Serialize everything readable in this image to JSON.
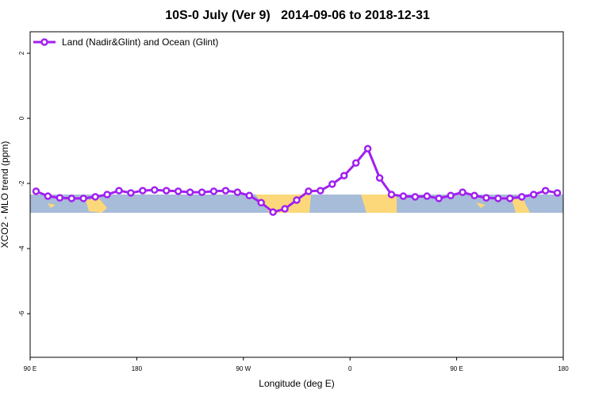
{
  "chart_data": {
    "type": "line",
    "title": "10S-0 July (Ver 9)   2014-09-06 to 2018-12-31",
    "xlabel": "Longitude (deg E)",
    "ylabel": "XCO2 - MLO trend (ppm)",
    "xlim": [
      90,
      540
    ],
    "ylim": [
      -7.34,
      2.66
    ],
    "xticks": [
      {
        "value": 90,
        "label": "90 E"
      },
      180,
      {
        "value": 270,
        "label": "90 W"
      },
      {
        "value": 360,
        "label": "0"
      },
      {
        "value": 450,
        "label": "90 E"
      },
      {
        "value": 540,
        "label": "180"
      }
    ],
    "yticks": [
      2,
      0,
      -2,
      -4,
      -6
    ],
    "legend": "top-left",
    "series": [
      {
        "name": "Land (Nadir&Glint) and Ocean (Glint)",
        "color": "#a020f0",
        "x": [
          95,
          105,
          115,
          125,
          135,
          145,
          155,
          165,
          175,
          185,
          195,
          205,
          215,
          225,
          235,
          245,
          255,
          265,
          275,
          285,
          295,
          305,
          315,
          325,
          335,
          345,
          355,
          365,
          375,
          385,
          395,
          405,
          415,
          425,
          435,
          445,
          455,
          465,
          475,
          485,
          495,
          505,
          515,
          525,
          535
        ],
        "values": [
          -2.24,
          -2.39,
          -2.44,
          -2.46,
          -2.46,
          -2.41,
          -2.34,
          -2.22,
          -2.29,
          -2.22,
          -2.2,
          -2.22,
          -2.24,
          -2.27,
          -2.27,
          -2.24,
          -2.22,
          -2.27,
          -2.37,
          -2.59,
          -2.88,
          -2.78,
          -2.51,
          -2.24,
          -2.22,
          -2.02,
          -1.76,
          -1.37,
          -0.93,
          -1.83,
          -2.34,
          -2.39,
          -2.41,
          -2.39,
          -2.46,
          -2.37,
          -2.27,
          -2.37,
          -2.44,
          -2.46,
          -2.46,
          -2.41,
          -2.34,
          -2.22,
          -2.29
        ]
      }
    ]
  }
}
